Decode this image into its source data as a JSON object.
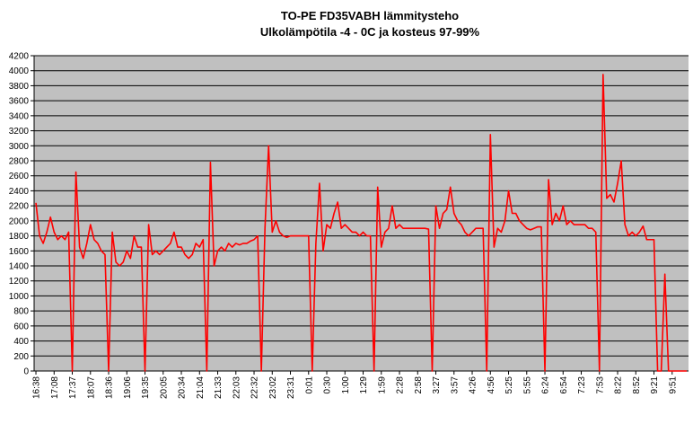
{
  "chart_data": {
    "type": "line",
    "title": "TO-PE FD35VABH lämmitysteho",
    "subtitle": "Ulkolämpötila  -4 - 0C ja kosteus 97-99%",
    "categories": [
      "16:38",
      null,
      null,
      null,
      null,
      "17:08",
      null,
      null,
      null,
      null,
      "17:37",
      null,
      null,
      null,
      null,
      "18:07",
      null,
      null,
      null,
      null,
      "18:36",
      null,
      null,
      null,
      null,
      "19:06",
      null,
      null,
      null,
      null,
      "19:35",
      null,
      null,
      null,
      null,
      "20:05",
      null,
      null,
      null,
      null,
      "20:34",
      null,
      null,
      null,
      null,
      "21:04",
      null,
      null,
      null,
      null,
      "21:33",
      null,
      null,
      null,
      null,
      "22:03",
      null,
      null,
      null,
      null,
      "22:32",
      null,
      null,
      null,
      null,
      "23:02",
      null,
      null,
      null,
      null,
      "23:31",
      null,
      null,
      null,
      null,
      "0:01",
      null,
      null,
      null,
      null,
      "0:30",
      null,
      null,
      null,
      null,
      "1:00",
      null,
      null,
      null,
      null,
      "1:29",
      null,
      null,
      null,
      null,
      "1:59",
      null,
      null,
      null,
      null,
      "2:28",
      null,
      null,
      null,
      null,
      "2:58",
      null,
      null,
      null,
      null,
      "3:27",
      null,
      null,
      null,
      null,
      "3:57",
      null,
      null,
      null,
      null,
      "4:26",
      null,
      null,
      null,
      null,
      "4:56",
      null,
      null,
      null,
      null,
      "5:25",
      null,
      null,
      null,
      null,
      "5:55",
      null,
      null,
      null,
      null,
      "6:24",
      null,
      null,
      null,
      null,
      "6:54",
      null,
      null,
      null,
      null,
      "7:23",
      null,
      null,
      null,
      null,
      "7:53",
      null,
      null,
      null,
      null,
      "8:22",
      null,
      null,
      null,
      null,
      "8:52",
      null,
      null,
      null,
      null,
      "9:21",
      null,
      null,
      null,
      null,
      "9:51",
      null,
      null,
      null,
      null
    ],
    "values": [
      2240,
      1800,
      1700,
      1850,
      2050,
      1850,
      1750,
      1800,
      1750,
      1850,
      0,
      2650,
      1650,
      1500,
      1700,
      1950,
      1750,
      1700,
      1600,
      1550,
      0,
      1850,
      1450,
      1400,
      1450,
      1600,
      1500,
      1800,
      1650,
      1650,
      0,
      1950,
      1550,
      1600,
      1550,
      1600,
      1650,
      1700,
      1850,
      1650,
      1650,
      1550,
      1500,
      1550,
      1700,
      1650,
      1750,
      0,
      2780,
      1400,
      1600,
      1650,
      1600,
      1700,
      1650,
      1700,
      1680,
      1700,
      1700,
      1730,
      1750,
      1800,
      0,
      1900,
      3000,
      1850,
      2000,
      1850,
      1800,
      1780,
      1800,
      1800,
      1800,
      1800,
      1800,
      1800,
      0,
      1700,
      2500,
      1600,
      1950,
      1900,
      2100,
      2250,
      1900,
      1950,
      1900,
      1850,
      1850,
      1800,
      1850,
      1800,
      1800,
      0,
      2450,
      1650,
      1850,
      1900,
      2200,
      1900,
      1950,
      1900,
      1900,
      1900,
      1900,
      1900,
      1900,
      1900,
      1890,
      0,
      2200,
      1900,
      2100,
      2150,
      2450,
      2100,
      2000,
      1950,
      1850,
      1800,
      1850,
      1900,
      1900,
      1900,
      0,
      3150,
      1650,
      1900,
      1850,
      2000,
      2400,
      2100,
      2100,
      2000,
      1950,
      1900,
      1880,
      1900,
      1920,
      1920,
      0,
      2550,
      1950,
      2100,
      2000,
      2200,
      1950,
      2000,
      1950,
      1950,
      1950,
      1950,
      1900,
      1900,
      1850,
      0,
      3950,
      2300,
      2350,
      2250,
      2500,
      2800,
      1950,
      1800,
      1850,
      1800,
      1850,
      1930,
      1750,
      1750,
      1750,
      0,
      0,
      1290,
      0,
      0,
      0,
      0,
      0,
      0
    ],
    "color": "#ff0000",
    "ylim": [
      0,
      4200
    ],
    "yticks": [
      0,
      200,
      400,
      600,
      800,
      1000,
      1200,
      1400,
      1600,
      1800,
      2000,
      2200,
      2400,
      2600,
      2800,
      3000,
      3200,
      3400,
      3600,
      3800,
      4000,
      4200
    ],
    "grid": true,
    "plot_background": "#c0c0c0"
  }
}
